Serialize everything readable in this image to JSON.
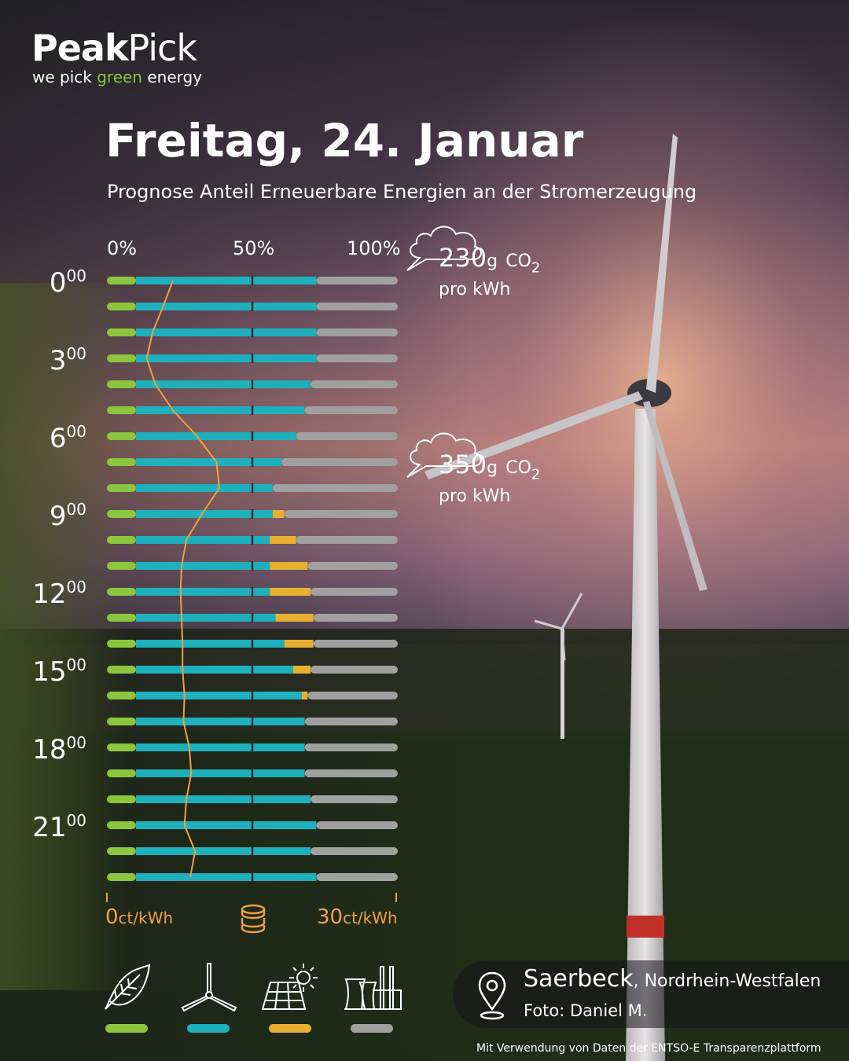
{
  "brand": {
    "name_bold": "Peak",
    "name_light": "Pick",
    "tagline_pre": "we pick ",
    "tagline_green": "green",
    "tagline_post": " energy"
  },
  "header": {
    "title": "Freitag, 24. Januar",
    "subtitle": "Prognose Anteil Erneuerbare Energien an der Stromerzeugung"
  },
  "chart_data": {
    "type": "bar",
    "stacked": true,
    "orientation": "horizontal",
    "x_axis_ticks": [
      "0%",
      "50%",
      "100%"
    ],
    "xlim": [
      0,
      100
    ],
    "hours": [
      "0",
      "1",
      "2",
      "3",
      "4",
      "5",
      "6",
      "7",
      "8",
      "9",
      "10",
      "11",
      "12",
      "13",
      "14",
      "15",
      "16",
      "17",
      "18",
      "19",
      "20",
      "21",
      "22",
      "23"
    ],
    "hour_labels": [
      {
        "hour": "0",
        "min": "00"
      },
      {
        "hour": "3",
        "min": "00"
      },
      {
        "hour": "6",
        "min": "00"
      },
      {
        "hour": "9",
        "min": "00"
      },
      {
        "hour": "12",
        "min": "00"
      },
      {
        "hour": "15",
        "min": "00"
      },
      {
        "hour": "18",
        "min": "00"
      },
      {
        "hour": "21",
        "min": "00"
      }
    ],
    "series": [
      {
        "name": "Biomasse",
        "color": "#8cc63f",
        "values": [
          10,
          10,
          10,
          10,
          10,
          10,
          10,
          10,
          10,
          10,
          10,
          10,
          10,
          10,
          10,
          10,
          10,
          10,
          10,
          10,
          10,
          10,
          10,
          10
        ]
      },
      {
        "name": "Wind",
        "color": "#1eb0bc",
        "values": [
          62,
          62,
          62,
          62,
          60,
          58,
          55,
          50,
          47,
          47,
          46,
          46,
          46,
          48,
          51,
          54,
          57,
          58,
          58,
          58,
          60,
          62,
          60,
          62
        ]
      },
      {
        "name": "Solar",
        "color": "#e8b030",
        "values": [
          0,
          0,
          0,
          0,
          0,
          0,
          0,
          0,
          0,
          4,
          9,
          13,
          14,
          13,
          10,
          6,
          2,
          0,
          0,
          0,
          0,
          0,
          0,
          0
        ]
      },
      {
        "name": "Konventionell",
        "color": "#a0a0a0",
        "values": [
          28,
          28,
          28,
          28,
          30,
          32,
          35,
          40,
          43,
          39,
          35,
          31,
          30,
          29,
          29,
          30,
          31,
          32,
          32,
          32,
          30,
          28,
          30,
          28
        ]
      }
    ],
    "price_line": {
      "color": "#f0a040",
      "unit": "ct/kWh",
      "range_ct": [
        0,
        30
      ],
      "min_label": "0",
      "max_label": "30",
      "values": [
        6.8,
        5.8,
        4.7,
        4.1,
        5.0,
        6.8,
        9.3,
        11.3,
        11.6,
        9.8,
        8.2,
        7.7,
        7.6,
        7.7,
        7.8,
        7.8,
        8.0,
        7.9,
        8.5,
        8.7,
        8.2,
        8.0,
        9.1,
        8.6
      ]
    },
    "co2_annotations": [
      {
        "hour": 0,
        "value": "230",
        "unit": "g",
        "gas": "CO",
        "sub": "2",
        "per": "pro kWh"
      },
      {
        "hour": 7,
        "value": "350",
        "unit": "g",
        "gas": "CO",
        "sub": "2",
        "per": "pro kWh"
      }
    ],
    "legend": [
      {
        "icon": "leaf-icon",
        "color": "#8cc63f"
      },
      {
        "icon": "wind-turbine-icon",
        "color": "#1eb0bc"
      },
      {
        "icon": "solar-panel-icon",
        "color": "#e8b030"
      },
      {
        "icon": "power-plant-icon",
        "color": "#a0a0a0"
      }
    ]
  },
  "location": {
    "city": "Saerbeck",
    "region": ", Nordrhein-Westfalen",
    "photo": "Foto: Daniel M."
  },
  "credit": "Mit Verwendung von Daten der ENTSO-E Transparenzplattform"
}
